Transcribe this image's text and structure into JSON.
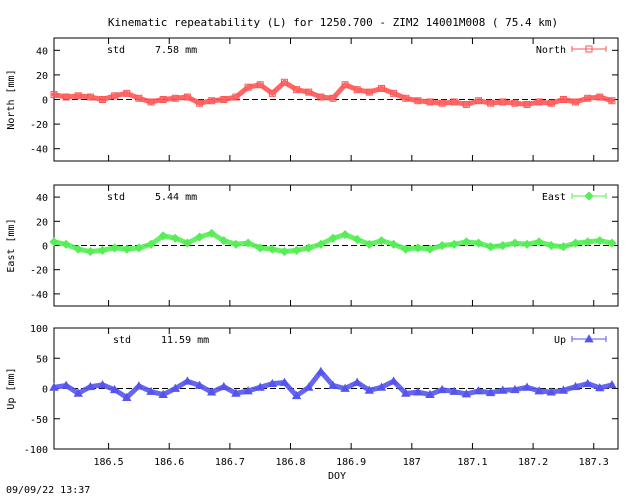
{
  "title": "Kinematic repeatability (L) for 1250.700 - ZIM2 14001M008  ( 75.4 km)",
  "timestamp": "09/09/22 13:37",
  "x_axis": {
    "label": "DOY",
    "range": [
      186.41,
      187.34
    ],
    "ticks": [
      186.5,
      186.6,
      186.7,
      186.8,
      186.9,
      187,
      187.1,
      187.2,
      187.3
    ],
    "tick_labels": [
      "186.5",
      "186.6",
      "186.7",
      "186.8",
      "186.9",
      "187",
      "187.1",
      "187.2",
      "187.3"
    ]
  },
  "chart_data": [
    {
      "type": "line",
      "name": "North",
      "ylabel": "North [mm]",
      "ylim": [
        -50,
        50
      ],
      "yticks": [
        -40,
        -20,
        0,
        20,
        40
      ],
      "ytick_labels": [
        "-40",
        "-20",
        "0",
        "20",
        "40"
      ],
      "std_label": "std",
      "std_value": "7.58 mm",
      "color": "#ff5555",
      "marker": "square",
      "grid": false,
      "legend_position": "top-right",
      "x": [
        186.41,
        186.43,
        186.45,
        186.47,
        186.49,
        186.51,
        186.53,
        186.55,
        186.57,
        186.59,
        186.61,
        186.63,
        186.65,
        186.67,
        186.69,
        186.71,
        186.73,
        186.75,
        186.77,
        186.79,
        186.81,
        186.83,
        186.85,
        186.87,
        186.89,
        186.91,
        186.93,
        186.95,
        186.97,
        186.99,
        187.01,
        187.03,
        187.05,
        187.07,
        187.09,
        187.11,
        187.13,
        187.15,
        187.17,
        187.19,
        187.21,
        187.23,
        187.25,
        187.27,
        187.29,
        187.31,
        187.33
      ],
      "values": [
        4,
        2,
        3,
        2,
        0,
        3,
        5,
        1,
        -2,
        0,
        1,
        2,
        -3,
        -1,
        0,
        2,
        10,
        12,
        5,
        14,
        8,
        6,
        2,
        1,
        12,
        8,
        6,
        9,
        5,
        1,
        -1,
        -2,
        -3,
        -2,
        -4,
        -1,
        -3,
        -2,
        -3,
        -4,
        -2,
        -3,
        0,
        -2,
        1,
        2,
        -1
      ]
    },
    {
      "type": "line",
      "name": "East",
      "ylabel": "East [mm]",
      "ylim": [
        -50,
        50
      ],
      "yticks": [
        -40,
        -20,
        0,
        20,
        40
      ],
      "ytick_labels": [
        "-40",
        "-20",
        "0",
        "20",
        "40"
      ],
      "std_label": "std",
      "std_value": "5.44 mm",
      "color": "#55ee55",
      "marker": "diamond",
      "grid": false,
      "legend_position": "top-right",
      "x": [
        186.41,
        186.43,
        186.45,
        186.47,
        186.49,
        186.51,
        186.53,
        186.55,
        186.57,
        186.59,
        186.61,
        186.63,
        186.65,
        186.67,
        186.69,
        186.71,
        186.73,
        186.75,
        186.77,
        186.79,
        186.81,
        186.83,
        186.85,
        186.87,
        186.89,
        186.91,
        186.93,
        186.95,
        186.97,
        186.99,
        187.01,
        187.03,
        187.05,
        187.07,
        187.09,
        187.11,
        187.13,
        187.15,
        187.17,
        187.19,
        187.21,
        187.23,
        187.25,
        187.27,
        187.29,
        187.31,
        187.33
      ],
      "values": [
        3,
        1,
        -3,
        -5,
        -4,
        -2,
        -3,
        -2,
        1,
        8,
        6,
        2,
        7,
        10,
        4,
        1,
        2,
        -2,
        -3,
        -5,
        -4,
        -2,
        1,
        6,
        9,
        5,
        1,
        4,
        1,
        -3,
        -2,
        -3,
        0,
        1,
        3,
        2,
        -1,
        0,
        2,
        1,
        3,
        0,
        -1,
        2,
        3,
        4,
        2
      ]
    },
    {
      "type": "line",
      "name": "Up",
      "ylabel": "Up [mm]",
      "ylim": [
        -100,
        100
      ],
      "yticks": [
        -100,
        -50,
        0,
        50,
        100
      ],
      "ytick_labels": [
        "-100",
        "-50",
        "0",
        "50",
        "100"
      ],
      "std_label": "std",
      "std_value": "11.59 mm",
      "color": "#5555ee",
      "marker": "triangle",
      "grid": false,
      "legend_position": "top-right",
      "x": [
        186.41,
        186.43,
        186.45,
        186.47,
        186.49,
        186.51,
        186.53,
        186.55,
        186.57,
        186.59,
        186.61,
        186.63,
        186.65,
        186.67,
        186.69,
        186.71,
        186.73,
        186.75,
        186.77,
        186.79,
        186.81,
        186.83,
        186.85,
        186.87,
        186.89,
        186.91,
        186.93,
        186.95,
        186.97,
        186.99,
        187.01,
        187.03,
        187.05,
        187.07,
        187.09,
        187.11,
        187.13,
        187.15,
        187.17,
        187.19,
        187.21,
        187.23,
        187.25,
        187.27,
        187.29,
        187.31,
        187.33
      ],
      "values": [
        2,
        5,
        -8,
        3,
        6,
        -2,
        -15,
        4,
        -5,
        -10,
        0,
        12,
        5,
        -6,
        3,
        -8,
        -4,
        2,
        8,
        10,
        -12,
        2,
        28,
        5,
        0,
        10,
        -3,
        2,
        12,
        -8,
        -6,
        -10,
        -2,
        -5,
        -9,
        -4,
        -7,
        -3,
        -2,
        2,
        -4,
        -6,
        -3,
        3,
        8,
        1,
        6
      ]
    }
  ]
}
